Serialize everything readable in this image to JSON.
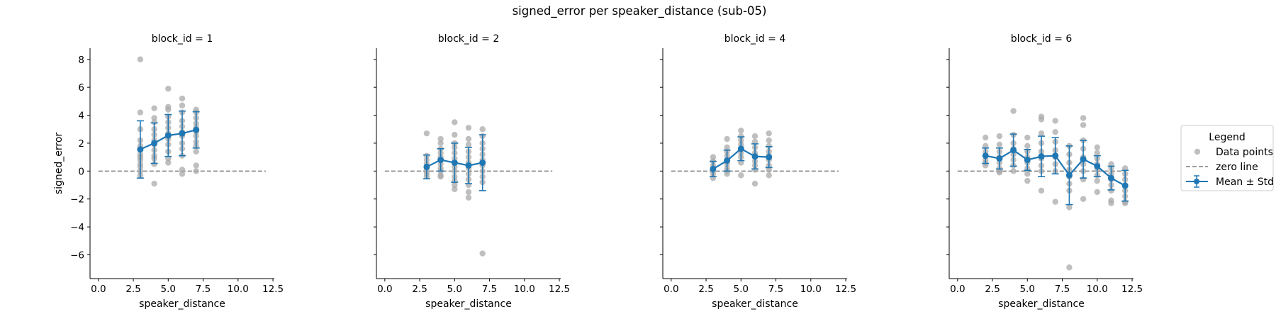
{
  "suptitle": "signed_error per speaker_distance (sub-05)",
  "legend": {
    "title": "Legend",
    "position": "right",
    "items": [
      {
        "label": "Data points",
        "marker": "grey-dot"
      },
      {
        "label": "zero line",
        "marker": "dashed-line"
      },
      {
        "label": "Mean ± Std",
        "marker": "line-errorbar"
      }
    ]
  },
  "colors": {
    "points": "#a9a9a9",
    "mean": "#1f77b4",
    "zero": "#7f7f7f"
  },
  "chart_data": {
    "type": "scatter",
    "xlabel": "speaker_distance",
    "ylabel": "signed_error",
    "xlim": [
      -0.6,
      12.6
    ],
    "ylim": [
      -7.7,
      8.8
    ],
    "xticks": [
      "0.0",
      "2.5",
      "5.0",
      "7.5",
      "10.0",
      "12.5"
    ],
    "yticks": [
      "8",
      "6",
      "4",
      "2",
      "0",
      "−2",
      "−4",
      "−6"
    ],
    "zero_line": {
      "y": 0,
      "x_range": [
        0,
        12
      ]
    },
    "panels": [
      {
        "title": "block_id = 1",
        "mean_std": [
          {
            "x": 3,
            "mean": 1.55,
            "std": 2.05
          },
          {
            "x": 4,
            "mean": 2.0,
            "std": 1.45
          },
          {
            "x": 5,
            "mean": 2.55,
            "std": 1.5
          },
          {
            "x": 6,
            "mean": 2.7,
            "std": 1.6
          },
          {
            "x": 7,
            "mean": 2.95,
            "std": 1.3
          }
        ],
        "points": [
          [
            3,
            8.0
          ],
          [
            3,
            4.2
          ],
          [
            3,
            3.0
          ],
          [
            3,
            2.2
          ],
          [
            3,
            1.8
          ],
          [
            3,
            1.2
          ],
          [
            3,
            1.0
          ],
          [
            3,
            0.8
          ],
          [
            3,
            0.5
          ],
          [
            3,
            0.3
          ],
          [
            3,
            0.0
          ],
          [
            3,
            -0.3
          ],
          [
            4,
            4.5
          ],
          [
            4,
            3.8
          ],
          [
            4,
            3.5
          ],
          [
            4,
            3.0
          ],
          [
            4,
            2.6
          ],
          [
            4,
            2.2
          ],
          [
            4,
            1.9
          ],
          [
            4,
            1.5
          ],
          [
            4,
            1.1
          ],
          [
            4,
            0.9
          ],
          [
            4,
            0.5
          ],
          [
            4,
            -0.9
          ],
          [
            5,
            5.9
          ],
          [
            5,
            4.6
          ],
          [
            5,
            4.4
          ],
          [
            5,
            3.9
          ],
          [
            5,
            3.5
          ],
          [
            5,
            3.1
          ],
          [
            5,
            2.7
          ],
          [
            5,
            2.3
          ],
          [
            5,
            1.9
          ],
          [
            5,
            1.4
          ],
          [
            5,
            0.9
          ],
          [
            5,
            0.6
          ],
          [
            6,
            5.2
          ],
          [
            6,
            4.7
          ],
          [
            6,
            4.2
          ],
          [
            6,
            3.6
          ],
          [
            6,
            3.2
          ],
          [
            6,
            2.8
          ],
          [
            6,
            2.5
          ],
          [
            6,
            2.0
          ],
          [
            6,
            1.6
          ],
          [
            6,
            1.1
          ],
          [
            6,
            0.1
          ],
          [
            6,
            -0.2
          ],
          [
            7,
            4.4
          ],
          [
            7,
            4.2
          ],
          [
            7,
            3.8
          ],
          [
            7,
            3.4
          ],
          [
            7,
            3.1
          ],
          [
            7,
            2.8
          ],
          [
            7,
            2.5
          ],
          [
            7,
            2.1
          ],
          [
            7,
            1.8
          ],
          [
            7,
            1.4
          ],
          [
            7,
            0.4
          ],
          [
            7,
            0.0
          ]
        ]
      },
      {
        "title": "block_id = 2",
        "mean_std": [
          {
            "x": 3,
            "mean": 0.3,
            "std": 0.85
          },
          {
            "x": 4,
            "mean": 0.8,
            "std": 0.8
          },
          {
            "x": 5,
            "mean": 0.6,
            "std": 1.4
          },
          {
            "x": 6,
            "mean": 0.4,
            "std": 1.3
          },
          {
            "x": 7,
            "mean": 0.6,
            "std": 2.0
          }
        ],
        "points": [
          [
            3,
            2.7
          ],
          [
            3,
            1.1
          ],
          [
            3,
            0.8
          ],
          [
            3,
            0.5
          ],
          [
            3,
            0.2
          ],
          [
            3,
            0.0
          ],
          [
            3,
            -0.2
          ],
          [
            3,
            -0.4
          ],
          [
            4,
            2.3
          ],
          [
            4,
            2.0
          ],
          [
            4,
            1.6
          ],
          [
            4,
            1.3
          ],
          [
            4,
            1.0
          ],
          [
            4,
            0.8
          ],
          [
            4,
            0.5
          ],
          [
            4,
            0.2
          ],
          [
            4,
            0.0
          ],
          [
            4,
            -0.3
          ],
          [
            4,
            -0.4
          ],
          [
            5,
            3.5
          ],
          [
            5,
            2.6
          ],
          [
            5,
            2.0
          ],
          [
            5,
            1.7
          ],
          [
            5,
            1.3
          ],
          [
            5,
            0.9
          ],
          [
            5,
            0.6
          ],
          [
            5,
            0.3
          ],
          [
            5,
            0.0
          ],
          [
            5,
            -0.4
          ],
          [
            5,
            -0.7
          ],
          [
            5,
            -1.0
          ],
          [
            5,
            -1.3
          ],
          [
            6,
            3.1
          ],
          [
            6,
            2.3
          ],
          [
            6,
            1.9
          ],
          [
            6,
            1.4
          ],
          [
            6,
            1.0
          ],
          [
            6,
            0.6
          ],
          [
            6,
            0.2
          ],
          [
            6,
            -0.2
          ],
          [
            6,
            -0.6
          ],
          [
            6,
            -1.0
          ],
          [
            6,
            -1.5
          ],
          [
            6,
            -1.9
          ],
          [
            7,
            3.0
          ],
          [
            7,
            2.5
          ],
          [
            7,
            2.0
          ],
          [
            7,
            1.6
          ],
          [
            7,
            1.2
          ],
          [
            7,
            0.8
          ],
          [
            7,
            0.4
          ],
          [
            7,
            0.0
          ],
          [
            7,
            -0.4
          ],
          [
            7,
            -0.8
          ],
          [
            7,
            -5.9
          ]
        ]
      },
      {
        "title": "block_id = 4",
        "mean_std": [
          {
            "x": 3,
            "mean": 0.15,
            "std": 0.55
          },
          {
            "x": 4,
            "mean": 0.75,
            "std": 0.75
          },
          {
            "x": 5,
            "mean": 1.6,
            "std": 0.85
          },
          {
            "x": 6,
            "mean": 1.05,
            "std": 0.9
          },
          {
            "x": 7,
            "mean": 1.0,
            "std": 0.75
          }
        ],
        "points": [
          [
            3,
            1.0
          ],
          [
            3,
            0.7
          ],
          [
            3,
            0.4
          ],
          [
            3,
            0.2
          ],
          [
            3,
            0.0
          ],
          [
            3,
            -0.2
          ],
          [
            3,
            -0.5
          ],
          [
            4,
            2.3
          ],
          [
            4,
            1.7
          ],
          [
            4,
            1.4
          ],
          [
            4,
            1.1
          ],
          [
            4,
            0.8
          ],
          [
            4,
            0.5
          ],
          [
            4,
            0.2
          ],
          [
            4,
            0.0
          ],
          [
            4,
            -0.2
          ],
          [
            5,
            2.9
          ],
          [
            5,
            2.5
          ],
          [
            5,
            2.2
          ],
          [
            5,
            1.9
          ],
          [
            5,
            1.6
          ],
          [
            5,
            1.3
          ],
          [
            5,
            1.0
          ],
          [
            5,
            0.6
          ],
          [
            5,
            -0.3
          ],
          [
            6,
            2.5
          ],
          [
            6,
            2.1
          ],
          [
            6,
            1.7
          ],
          [
            6,
            1.3
          ],
          [
            6,
            1.0
          ],
          [
            6,
            0.7
          ],
          [
            6,
            0.4
          ],
          [
            6,
            0.1
          ],
          [
            6,
            -0.9
          ],
          [
            7,
            2.7
          ],
          [
            7,
            2.2
          ],
          [
            7,
            1.8
          ],
          [
            7,
            1.4
          ],
          [
            7,
            1.1
          ],
          [
            7,
            0.8
          ],
          [
            7,
            0.4
          ],
          [
            7,
            0.1
          ],
          [
            7,
            -0.3
          ]
        ]
      },
      {
        "title": "block_id = 6",
        "mean_std": [
          {
            "x": 2,
            "mean": 1.1,
            "std": 0.55
          },
          {
            "x": 3,
            "mean": 0.9,
            "std": 0.75
          },
          {
            "x": 4,
            "mean": 1.5,
            "std": 1.15
          },
          {
            "x": 5,
            "mean": 0.8,
            "std": 0.75
          },
          {
            "x": 6,
            "mean": 1.05,
            "std": 1.45
          },
          {
            "x": 7,
            "mean": 1.1,
            "std": 1.3
          },
          {
            "x": 8,
            "mean": -0.3,
            "std": 2.1
          },
          {
            "x": 9,
            "mean": 0.85,
            "std": 1.35
          },
          {
            "x": 10,
            "mean": 0.35,
            "std": 0.75
          },
          {
            "x": 11,
            "mean": -0.5,
            "std": 0.85
          },
          {
            "x": 12,
            "mean": -1.05,
            "std": 1.1
          }
        ],
        "points": [
          [
            2,
            2.4
          ],
          [
            2,
            1.8
          ],
          [
            2,
            1.4
          ],
          [
            2,
            1.1
          ],
          [
            2,
            0.8
          ],
          [
            2,
            0.6
          ],
          [
            2,
            0.4
          ],
          [
            3,
            2.5
          ],
          [
            3,
            1.9
          ],
          [
            3,
            1.4
          ],
          [
            3,
            1.0
          ],
          [
            3,
            0.6
          ],
          [
            3,
            0.2
          ],
          [
            3,
            0.0
          ],
          [
            3,
            -0.1
          ],
          [
            4,
            4.3
          ],
          [
            4,
            2.6
          ],
          [
            4,
            2.0
          ],
          [
            4,
            1.6
          ],
          [
            4,
            1.2
          ],
          [
            4,
            0.8
          ],
          [
            4,
            0.4
          ],
          [
            4,
            0.0
          ],
          [
            5,
            2.4
          ],
          [
            5,
            1.8
          ],
          [
            5,
            1.4
          ],
          [
            5,
            1.0
          ],
          [
            5,
            0.6
          ],
          [
            5,
            0.2
          ],
          [
            5,
            -0.2
          ],
          [
            5,
            -0.7
          ],
          [
            6,
            3.9
          ],
          [
            6,
            3.7
          ],
          [
            6,
            2.7
          ],
          [
            6,
            2.0
          ],
          [
            6,
            1.4
          ],
          [
            6,
            0.9
          ],
          [
            6,
            0.4
          ],
          [
            6,
            0.0
          ],
          [
            6,
            -1.4
          ],
          [
            7,
            3.6
          ],
          [
            7,
            2.8
          ],
          [
            7,
            2.1
          ],
          [
            7,
            1.5
          ],
          [
            7,
            1.0
          ],
          [
            7,
            0.5
          ],
          [
            7,
            0.0
          ],
          [
            7,
            -2.2
          ],
          [
            8,
            1.8
          ],
          [
            8,
            1.2
          ],
          [
            8,
            0.6
          ],
          [
            8,
            0.1
          ],
          [
            8,
            -0.4
          ],
          [
            8,
            -0.9
          ],
          [
            8,
            -1.4
          ],
          [
            8,
            -2.6
          ],
          [
            8,
            -6.9
          ],
          [
            9,
            3.8
          ],
          [
            9,
            3.3
          ],
          [
            9,
            2.2
          ],
          [
            9,
            1.6
          ],
          [
            9,
            1.0
          ],
          [
            9,
            0.5
          ],
          [
            9,
            0.0
          ],
          [
            9,
            -0.6
          ],
          [
            9,
            -2.0
          ],
          [
            10,
            1.7
          ],
          [
            10,
            1.3
          ],
          [
            10,
            0.9
          ],
          [
            10,
            0.5
          ],
          [
            10,
            0.1
          ],
          [
            10,
            -0.3
          ],
          [
            10,
            -0.7
          ],
          [
            10,
            -1.5
          ],
          [
            11,
            0.5
          ],
          [
            11,
            0.2
          ],
          [
            11,
            -0.2
          ],
          [
            11,
            -0.6
          ],
          [
            11,
            -1.0
          ],
          [
            11,
            -1.4
          ],
          [
            11,
            -2.1
          ],
          [
            11,
            -2.3
          ],
          [
            12,
            0.2
          ],
          [
            12,
            -0.2
          ],
          [
            12,
            -0.6
          ],
          [
            12,
            -1.0
          ],
          [
            12,
            -1.4
          ],
          [
            12,
            -1.8
          ],
          [
            12,
            -2.2
          ],
          [
            12,
            -2.3
          ]
        ]
      }
    ]
  }
}
